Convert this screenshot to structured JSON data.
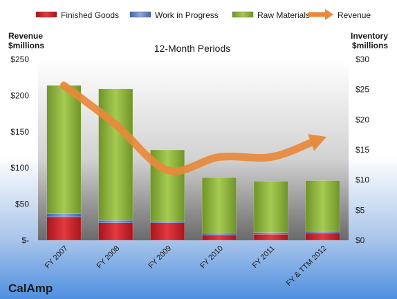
{
  "chart_data": {
    "type": "bar",
    "stacked": true,
    "title": "12-Month Periods",
    "company": "CalAmp",
    "y_left_label": [
      "Revenue",
      "$millions"
    ],
    "y_right_label": [
      "Inventory",
      "$millions"
    ],
    "categories": [
      "FY 2007",
      "FY 2008",
      "FY 2009",
      "FY 2010",
      "FY 2011",
      "FY & TTM 2012"
    ],
    "series": [
      {
        "name": "Finished Goods",
        "axis": "right",
        "color": "#c0202a",
        "values": [
          3.9,
          2.9,
          2.9,
          0.9,
          1.0,
          1.2
        ]
      },
      {
        "name": "Work in Progress",
        "axis": "right",
        "color": "#5b7fc4",
        "values": [
          0.5,
          0.4,
          0.3,
          0.3,
          0.3,
          0.3
        ]
      },
      {
        "name": "Raw Materials",
        "axis": "right",
        "color": "#8fb53a",
        "values": [
          21.3,
          21.8,
          11.8,
          9.2,
          8.5,
          8.4
        ]
      },
      {
        "name": "Revenue",
        "axis": "left",
        "type": "line",
        "color": "#e8893b",
        "values": [
          214,
          160,
          97,
          115,
          115,
          141
        ]
      }
    ],
    "y_left": {
      "min": 0,
      "max": 250,
      "step": 50,
      "ticks": [
        "$-",
        "$50",
        "$100",
        "$150",
        "$200",
        "$250"
      ]
    },
    "y_right": {
      "min": 0,
      "max": 30,
      "step": 5,
      "ticks": [
        "$0",
        "$5",
        "$10",
        "$15",
        "$20",
        "$25",
        "$30"
      ]
    },
    "legend_position": "top",
    "grid": false
  }
}
